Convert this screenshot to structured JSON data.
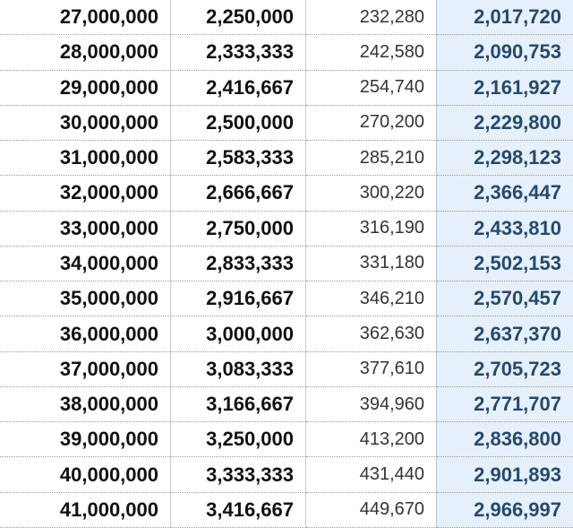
{
  "table": {
    "rows": [
      [
        "27,000,000",
        "2,250,000",
        "232,280",
        "2,017,720"
      ],
      [
        "28,000,000",
        "2,333,333",
        "242,580",
        "2,090,753"
      ],
      [
        "29,000,000",
        "2,416,667",
        "254,740",
        "2,161,927"
      ],
      [
        "30,000,000",
        "2,500,000",
        "270,200",
        "2,229,800"
      ],
      [
        "31,000,000",
        "2,583,333",
        "285,210",
        "2,298,123"
      ],
      [
        "32,000,000",
        "2,666,667",
        "300,220",
        "2,366,447"
      ],
      [
        "33,000,000",
        "2,750,000",
        "316,190",
        "2,433,810"
      ],
      [
        "34,000,000",
        "2,833,333",
        "331,180",
        "2,502,153"
      ],
      [
        "35,000,000",
        "2,916,667",
        "346,210",
        "2,570,457"
      ],
      [
        "36,000,000",
        "3,000,000",
        "362,630",
        "2,637,370"
      ],
      [
        "37,000,000",
        "3,083,333",
        "377,610",
        "2,705,723"
      ],
      [
        "38,000,000",
        "3,166,667",
        "394,960",
        "2,771,707"
      ],
      [
        "39,000,000",
        "3,250,000",
        "413,200",
        "2,836,800"
      ],
      [
        "40,000,000",
        "3,333,333",
        "431,440",
        "2,901,893"
      ],
      [
        "41,000,000",
        "3,416,667",
        "449,670",
        "2,966,997"
      ]
    ]
  }
}
